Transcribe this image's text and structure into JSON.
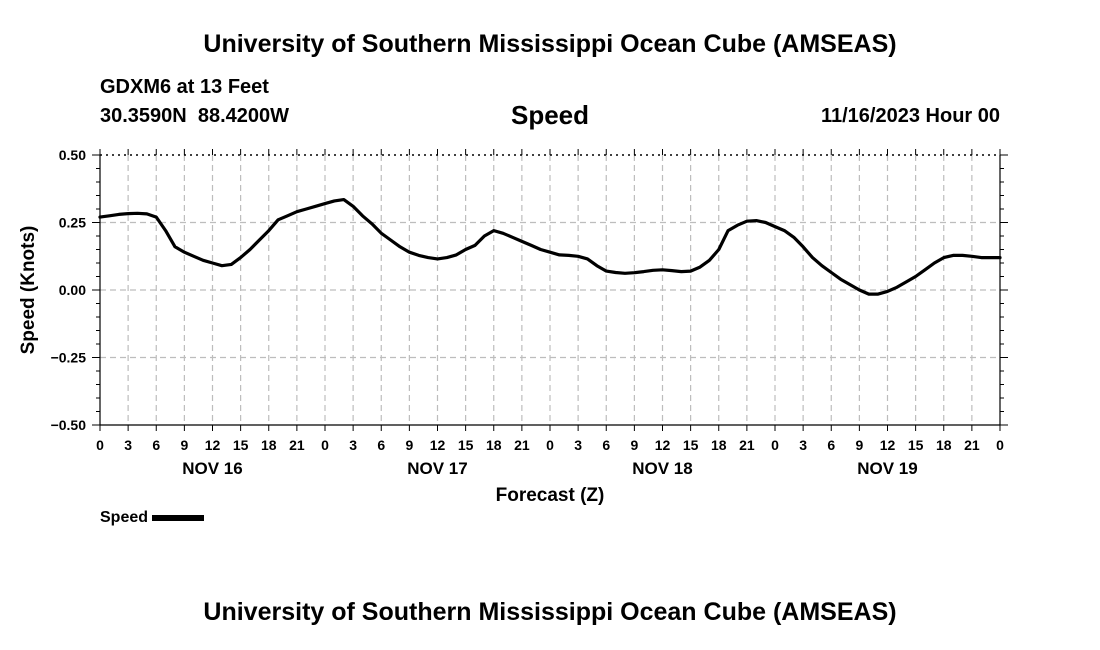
{
  "header": {
    "title": "University of Southern Mississippi Ocean Cube (AMSEAS)",
    "station": "GDXM6 at 13 Feet",
    "coords": "30.3590N  88.4200W",
    "forecast_date": "11/16/2023 Hour 00"
  },
  "footer": {
    "title": "University of Southern Mississippi Ocean Cube (AMSEAS)"
  },
  "legend": {
    "label": "Speed",
    "color": "#000000"
  },
  "chart_data": {
    "type": "line",
    "title": "Speed",
    "xlabel": "Forecast (Z)",
    "ylabel": "Speed (Knots)",
    "xlim": [
      0,
      96
    ],
    "ylim": [
      -0.5,
      0.5
    ],
    "y_ticks": [
      0.5,
      0.25,
      0.0,
      -0.25,
      -0.5
    ],
    "y_tick_labels": [
      "0.50",
      "0.25",
      "0.00",
      "−0.25",
      "−0.50"
    ],
    "x_tick_hours": [
      0,
      3,
      6,
      9,
      12,
      15,
      18,
      21,
      24,
      27,
      30,
      33,
      36,
      39,
      42,
      45,
      48,
      51,
      54,
      57,
      60,
      63,
      66,
      69,
      72,
      75,
      78,
      81,
      84,
      87,
      90,
      93,
      96
    ],
    "x_tick_labels": [
      "0",
      "3",
      "6",
      "9",
      "12",
      "15",
      "18",
      "21",
      "0",
      "3",
      "6",
      "9",
      "12",
      "15",
      "18",
      "21",
      "0",
      "3",
      "6",
      "9",
      "12",
      "15",
      "18",
      "21",
      "0",
      "3",
      "6",
      "9",
      "12",
      "15",
      "18",
      "21",
      "0"
    ],
    "day_labels": [
      {
        "hour": 12,
        "label": "NOV 16"
      },
      {
        "hour": 36,
        "label": "NOV 17"
      },
      {
        "hour": 60,
        "label": "NOV 18"
      },
      {
        "hour": 84,
        "label": "NOV 19"
      }
    ],
    "grid": true,
    "series": [
      {
        "name": "Speed",
        "color": "#000000",
        "x": [
          0,
          1,
          2,
          3,
          4,
          5,
          6,
          7,
          8,
          9,
          10,
          11,
          12,
          13,
          14,
          15,
          16,
          17,
          18,
          19,
          20,
          21,
          22,
          23,
          24,
          25,
          26,
          27,
          28,
          29,
          30,
          31,
          32,
          33,
          34,
          35,
          36,
          37,
          38,
          39,
          40,
          41,
          42,
          43,
          44,
          45,
          46,
          47,
          48,
          49,
          50,
          51,
          52,
          53,
          54,
          55,
          56,
          57,
          58,
          59,
          60,
          61,
          62,
          63,
          64,
          65,
          66,
          67,
          68,
          69,
          70,
          71,
          72,
          73,
          74,
          75,
          76,
          77,
          78,
          79,
          80,
          81,
          82,
          83,
          84,
          85,
          86,
          87,
          88,
          89,
          90,
          91,
          92,
          93,
          94,
          95,
          96
        ],
        "values": [
          0.27,
          0.275,
          0.28,
          0.283,
          0.284,
          0.282,
          0.27,
          0.22,
          0.16,
          0.14,
          0.125,
          0.11,
          0.1,
          0.09,
          0.095,
          0.12,
          0.15,
          0.185,
          0.22,
          0.26,
          0.275,
          0.29,
          0.3,
          0.31,
          0.32,
          0.33,
          0.335,
          0.31,
          0.275,
          0.245,
          0.21,
          0.185,
          0.16,
          0.14,
          0.128,
          0.12,
          0.115,
          0.12,
          0.13,
          0.15,
          0.165,
          0.2,
          0.22,
          0.21,
          0.195,
          0.18,
          0.165,
          0.15,
          0.14,
          0.13,
          0.128,
          0.125,
          0.115,
          0.09,
          0.07,
          0.065,
          0.062,
          0.064,
          0.068,
          0.073,
          0.075,
          0.072,
          0.068,
          0.07,
          0.085,
          0.11,
          0.15,
          0.22,
          0.24,
          0.255,
          0.257,
          0.25,
          0.235,
          0.22,
          0.195,
          0.16,
          0.12,
          0.09,
          0.065,
          0.04,
          0.02,
          0.0,
          -0.015,
          -0.015,
          -0.005,
          0.01,
          0.03,
          0.05,
          0.075,
          0.1,
          0.12,
          0.128,
          0.128,
          0.125,
          0.12,
          0.12,
          0.12
        ]
      }
    ]
  }
}
